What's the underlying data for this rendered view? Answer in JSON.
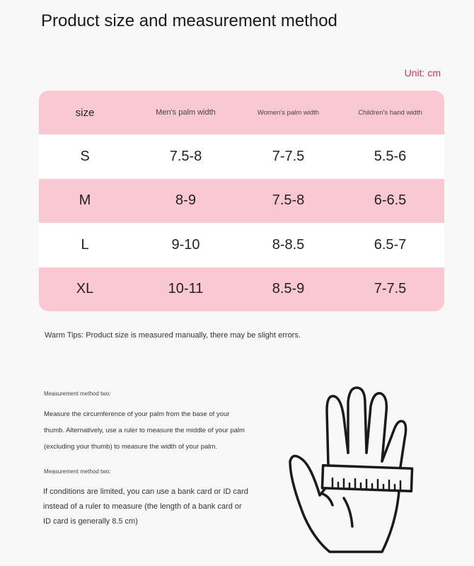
{
  "title": "Product size and measurement method",
  "unit": "Unit: cm",
  "colors": {
    "row_pink": "#f9c8d3",
    "unit_text": "#d2345e",
    "background": "#f8f8f8"
  },
  "table": {
    "headers": [
      "size",
      "Men's palm width",
      "Women's palm width",
      "Children's hand width"
    ],
    "rows": [
      [
        "S",
        "7.5-8",
        "7-7.5",
        "5.5-6"
      ],
      [
        "M",
        "8-9",
        "7.5-8",
        "6-6.5"
      ],
      [
        "L",
        "9-10",
        "8-8.5",
        "6.5-7"
      ],
      [
        "XL",
        "10-11",
        "8.5-9",
        "7-7.5"
      ]
    ]
  },
  "tips": "Warm Tips: Product size is measured manually, there may be slight errors.",
  "methods": [
    {
      "label": "Measurement method two:",
      "text": "Measure the circumference of your palm from the base of your thumb. Alternatively, use a ruler to measure the middle of your palm (excluding your thumb) to measure the width of your palm."
    },
    {
      "label": "Measurement method two:",
      "text": "If conditions are limited, you can use a bank card or ID card instead of a ruler to measure (the length of a bank card or ID card is generally 8.5 cm)"
    }
  ],
  "illustration": {
    "icon": "hand-with-ruler-icon"
  }
}
